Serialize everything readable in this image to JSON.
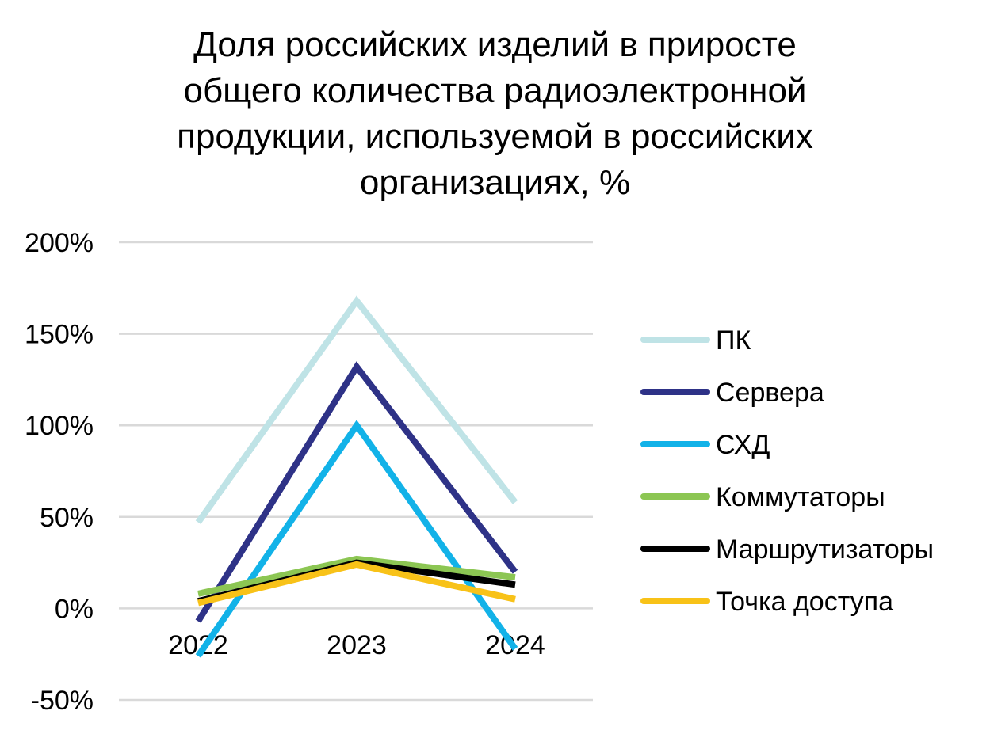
{
  "chart_data": {
    "type": "line",
    "title": "Доля российских изделий в приросте общего количества радиоэлектронной продукции, используемой в российских организациях, %",
    "title_lines": [
      "Доля российских изделий в приросте",
      "общего количества радиоэлектронной",
      "продукции, используемой в российских",
      "организациях, %"
    ],
    "x": [
      "2022",
      "2023",
      "2024"
    ],
    "ylim": [
      -50,
      200
    ],
    "yticks": [
      -50,
      0,
      50,
      100,
      150,
      200
    ],
    "ytick_labels": [
      "-50%",
      "0%",
      "50%",
      "100%",
      "150%",
      "200%"
    ],
    "grid": true,
    "legend_position": "right",
    "series": [
      {
        "name": "ПК",
        "color": "#BFE3E6",
        "values": [
          47,
          168,
          58
        ]
      },
      {
        "name": "Сервера",
        "color": "#2E3287",
        "values": [
          -7,
          132,
          20
        ]
      },
      {
        "name": "СХД",
        "color": "#12B2E8",
        "values": [
          -26,
          100,
          -22
        ]
      },
      {
        "name": "Коммутаторы",
        "color": "#8CC653",
        "values": [
          8,
          27,
          17
        ]
      },
      {
        "name": "Маршрутизаторы",
        "color": "#000000",
        "values": [
          4,
          25,
          13
        ]
      },
      {
        "name": "Точка доступа",
        "color": "#F8C218",
        "values": [
          3,
          24,
          5
        ]
      }
    ]
  }
}
